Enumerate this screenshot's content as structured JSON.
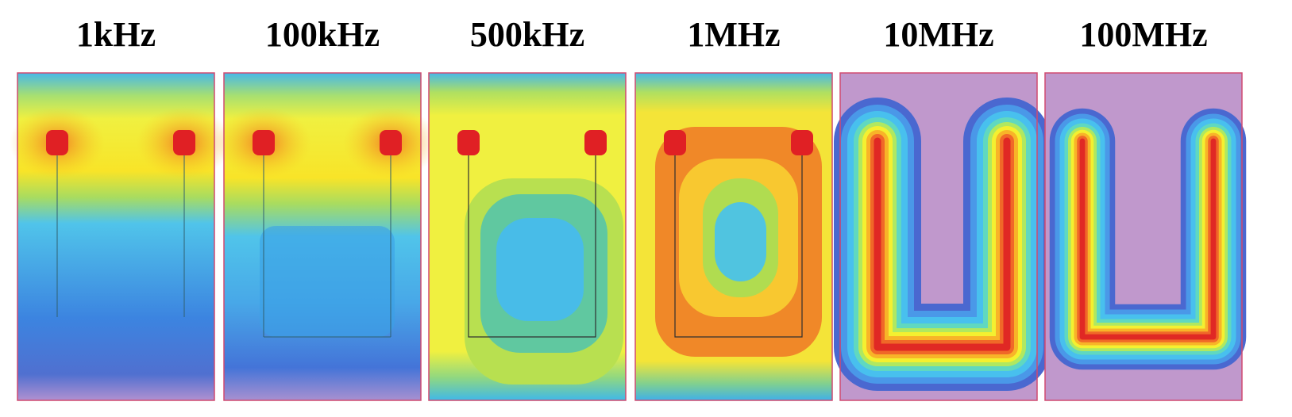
{
  "panels": [
    {
      "label": "1kHz"
    },
    {
      "label": "100kHz"
    },
    {
      "label": "500kHz"
    },
    {
      "label": "1MHz"
    },
    {
      "label": "10MHz"
    },
    {
      "label": "100MHz"
    }
  ]
}
